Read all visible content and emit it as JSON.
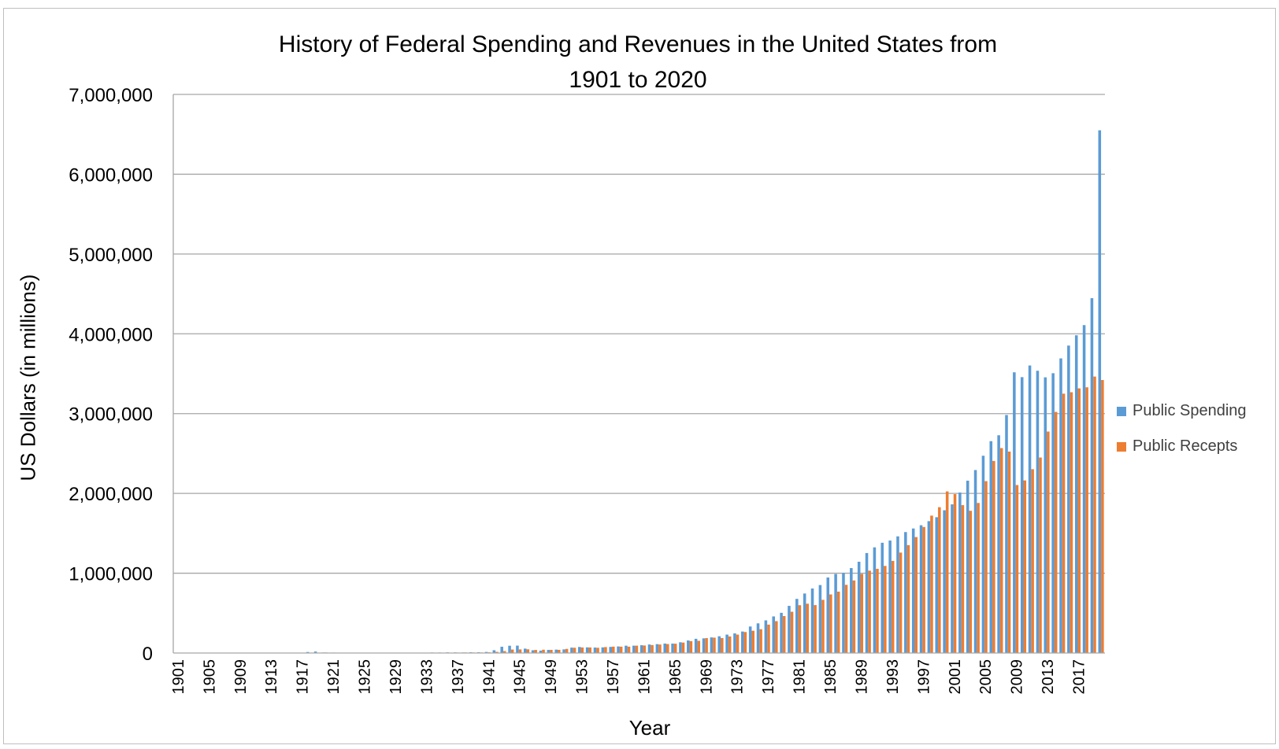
{
  "chart_data": {
    "type": "bar",
    "title": [
      "History of Federal Spending and Revenues in the United States from",
      "1901 to 2020"
    ],
    "xlabel": "Year",
    "ylabel": "US Dollars (in millions)",
    "ylim": [
      0,
      7000000
    ],
    "yticks": [
      "0",
      "1,000,000",
      "2,000,000",
      "3,000,000",
      "4,000,000",
      "5,000,000",
      "6,000,000",
      "7,000,000"
    ],
    "grid": true,
    "legend_position": "right",
    "x_start": 1901,
    "x_end": 2020,
    "xtick_labels": [
      "1901",
      "1905",
      "1909",
      "1913",
      "1917",
      "1921",
      "1925",
      "1929",
      "1933",
      "1937",
      "1941",
      "1945",
      "1949",
      "1953",
      "1957",
      "1961",
      "1965",
      "1969",
      "1973",
      "1977",
      "1981",
      "1985",
      "1989",
      "1993",
      "1997",
      "2001",
      "2005",
      "2009",
      "2013",
      "2017"
    ],
    "series": [
      {
        "name": "Public Spending",
        "color": "#5b9bd5",
        "values": [
          525,
          485,
          517,
          584,
          567,
          570,
          579,
          659,
          694,
          694,
          691,
          690,
          715,
          725,
          746,
          713,
          1954,
          12677,
          18493,
          6358,
          5062,
          3289,
          3140,
          3048,
          2924,
          2930,
          2857,
          2961,
          3127,
          3320,
          3577,
          4659,
          4598,
          6541,
          6412,
          8228,
          7580,
          6840,
          9141,
          9468,
          13653,
          35137,
          78555,
          91304,
          92712,
          55232,
          34496,
          29764,
          38835,
          42562,
          45514,
          67686,
          76101,
          70855,
          68444,
          70640,
          76578,
          82405,
          92098,
          92191,
          97723,
          106821,
          111316,
          118528,
          118228,
          134532,
          157464,
          178134,
          183640,
          195649,
          210172,
          230681,
          245707,
          269359,
          332332,
          371792,
          409218,
          458746,
          504028,
          590941,
          678241,
          745743,
          808364,
          851805,
          946344,
          990382,
          1004017,
          1064416,
          1143744,
          1252993,
          1324226,
          1381529,
          1409386,
          1461752,
          1515742,
          1560484,
          1601116,
          1652458,
          1701842,
          1788950,
          1862846,
          2010894,
          2159899,
          2292841,
          2471957,
          2655050,
          2728686,
          2982544,
          3517677,
          3457079,
          3603065,
          3536945,
          3454605,
          3506284,
          3691850,
          3852616,
          3981634,
          4109044,
          4446956,
          6550395
        ]
      },
      {
        "name": "Public Recepts",
        "color": "#ed7d31",
        "values": [
          588,
          562,
          562,
          541,
          544,
          595,
          666,
          602,
          604,
          676,
          702,
          693,
          714,
          725,
          683,
          761,
          1101,
          3645,
          5130,
          6649,
          5571,
          4026,
          3853,
          3871,
          3641,
          3795,
          4013,
          3900,
          3862,
          4058,
          3116,
          1924,
          1997,
          2955,
          3609,
          3923,
          5387,
          6751,
          6295,
          6548,
          8712,
          14634,
          24001,
          43747,
          45159,
          46310,
          38514,
          41560,
          39415,
          39443,
          51616,
          66167,
          69608,
          69701,
          65451,
          74587,
          79990,
          79636,
          79249,
          92492,
          94388,
          99676,
          106560,
          112613,
          116817,
          130835,
          148822,
          152973,
          186882,
          192807,
          187139,
          207309,
          230799,
          263224,
          279090,
          298060,
          355559,
          399561,
          463302,
          517112,
          599272,
          617766,
          600562,
          666438,
          734037,
          769155,
          854287,
          909238,
          991105,
          1031958,
          1054988,
          1091208,
          1154335,
          1258566,
          1351790,
          1453053,
          1579232,
          1721728,
          1827452,
          2025191,
          1991082,
          1853136,
          1782314,
          1880114,
          2153611,
          2406869,
          2567985,
          2523991,
          2104989,
          2162706,
          2303466,
          2449988,
          2775103,
          3021487,
          3249887,
          3267961,
          3316184,
          3329904,
          3464159,
          3421164
        ]
      }
    ]
  }
}
